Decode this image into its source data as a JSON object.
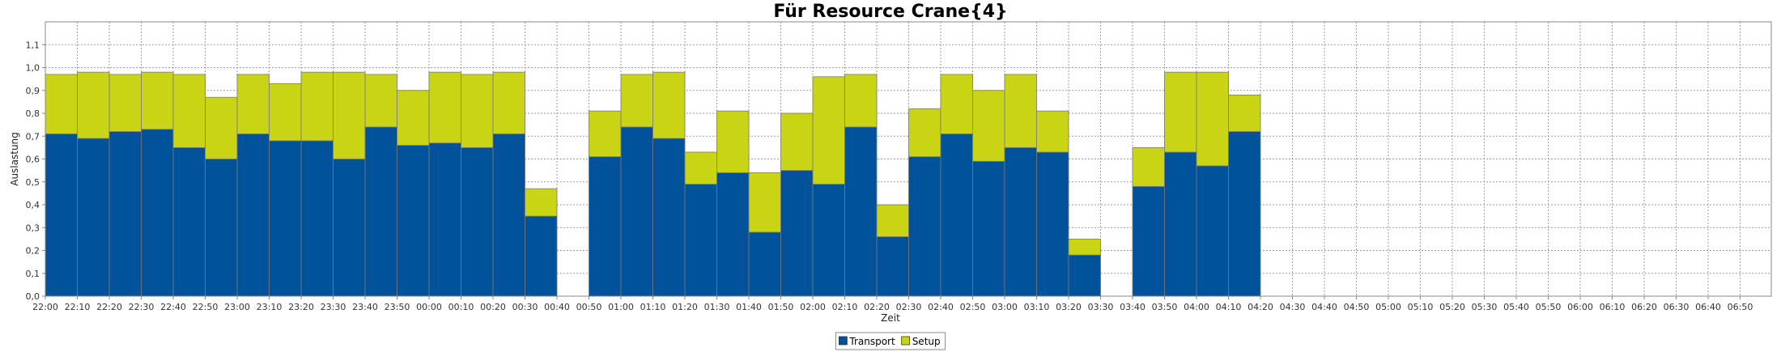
{
  "chart_data": {
    "type": "bar",
    "stacked": true,
    "title": "Für Resource Crane{4}",
    "xlabel": "Zeit",
    "ylabel": "Auslastung",
    "ylim": [
      0,
      1.2
    ],
    "y_ticks": [
      "0,0",
      "0,1",
      "0,2",
      "0,3",
      "0,4",
      "0,5",
      "0,6",
      "0,7",
      "0,8",
      "0,9",
      "1,0",
      "1,1"
    ],
    "grid": true,
    "legend_position": "bottom",
    "categories": [
      "22:00",
      "22:10",
      "22:20",
      "22:30",
      "22:40",
      "22:50",
      "23:00",
      "23:10",
      "23:20",
      "23:30",
      "23:40",
      "23:50",
      "00:00",
      "00:10",
      "00:20",
      "00:30",
      "00:40",
      "00:50",
      "01:00",
      "01:10",
      "01:20",
      "01:30",
      "01:40",
      "01:50",
      "02:00",
      "02:10",
      "02:20",
      "02:30",
      "02:40",
      "02:50",
      "03:00",
      "03:10",
      "03:20",
      "03:30",
      "03:40",
      "03:50",
      "04:00",
      "04:10",
      "04:20",
      "04:30",
      "04:40",
      "04:50",
      "05:00",
      "05:10",
      "05:20",
      "05:30",
      "05:40",
      "05:50",
      "06:00",
      "06:10",
      "06:20",
      "06:30",
      "06:40",
      "06:50"
    ],
    "series": [
      {
        "name": "Transport",
        "color": "#00529b",
        "values": [
          0.71,
          0.69,
          0.72,
          0.73,
          0.65,
          0.6,
          0.71,
          0.68,
          0.68,
          0.6,
          0.74,
          0.66,
          0.67,
          0.65,
          0.71,
          0.35,
          0,
          0.61,
          0.74,
          0.69,
          0.49,
          0.54,
          0.28,
          0.55,
          0.49,
          0.74,
          0.26,
          0.61,
          0.71,
          0.59,
          0.65,
          0.63,
          0.18,
          0,
          0.48,
          0.63,
          0.57,
          0.72,
          0,
          0,
          0,
          0,
          0,
          0,
          0,
          0,
          0,
          0,
          0,
          0,
          0,
          0,
          0,
          0
        ]
      },
      {
        "name": "Setup",
        "color": "#c8d414",
        "values": [
          0.26,
          0.29,
          0.25,
          0.25,
          0.32,
          0.27,
          0.26,
          0.25,
          0.3,
          0.38,
          0.23,
          0.24,
          0.31,
          0.32,
          0.27,
          0.12,
          0,
          0.2,
          0.23,
          0.29,
          0.14,
          0.27,
          0.26,
          0.25,
          0.47,
          0.23,
          0.14,
          0.21,
          0.26,
          0.31,
          0.32,
          0.18,
          0.07,
          0,
          0.17,
          0.35,
          0.41,
          0.16,
          0,
          0,
          0,
          0,
          0,
          0,
          0,
          0,
          0,
          0,
          0,
          0,
          0,
          0,
          0,
          0
        ]
      }
    ]
  }
}
